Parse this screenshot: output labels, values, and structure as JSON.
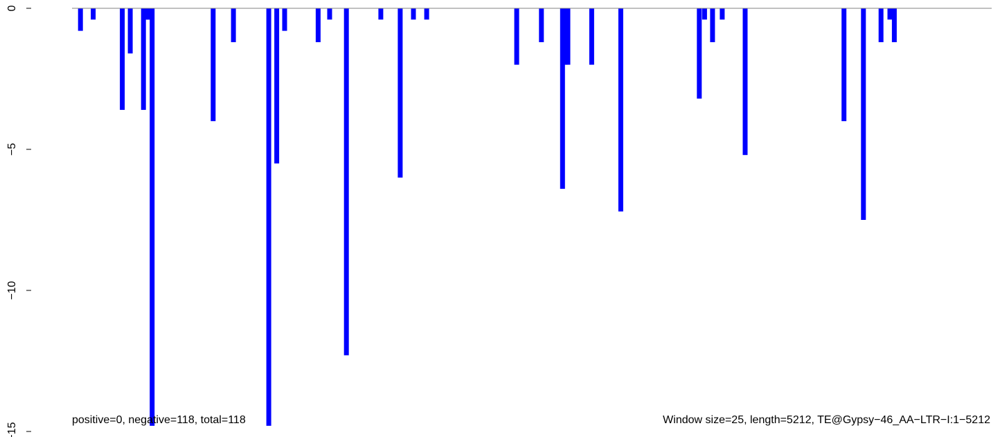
{
  "chart_data": {
    "type": "bar",
    "title": "",
    "xlabel": "",
    "ylabel": "",
    "bar_color": "#0000ff",
    "baseline_color": "#808080",
    "xlim": [
      0,
      5212
    ],
    "ylim": [
      -15,
      0
    ],
    "yticks": [
      {
        "value": 0,
        "label": "0"
      },
      {
        "value": -5,
        "label": "−5"
      },
      {
        "value": -10,
        "label": "−10"
      },
      {
        "value": -15,
        "label": "−15"
      }
    ],
    "grid": false,
    "bars": [
      {
        "x": 48,
        "value": -0.8
      },
      {
        "x": 120,
        "value": -0.4
      },
      {
        "x": 285,
        "value": -3.6
      },
      {
        "x": 330,
        "value": -1.6
      },
      {
        "x": 405,
        "value": -3.6
      },
      {
        "x": 418,
        "value": -0.4
      },
      {
        "x": 430,
        "value": -0.4
      },
      {
        "x": 442,
        "value": -0.4
      },
      {
        "x": 454,
        "value": -14.8
      },
      {
        "x": 800,
        "value": -4.0
      },
      {
        "x": 915,
        "value": -1.2
      },
      {
        "x": 1115,
        "value": -14.8
      },
      {
        "x": 1160,
        "value": -5.5
      },
      {
        "x": 1205,
        "value": -0.8
      },
      {
        "x": 1395,
        "value": -1.2
      },
      {
        "x": 1460,
        "value": -0.4
      },
      {
        "x": 1555,
        "value": -12.3
      },
      {
        "x": 1750,
        "value": -0.4
      },
      {
        "x": 1860,
        "value": -6.0
      },
      {
        "x": 1935,
        "value": -0.4
      },
      {
        "x": 2010,
        "value": -0.4
      },
      {
        "x": 2520,
        "value": -2.0
      },
      {
        "x": 2660,
        "value": -1.2
      },
      {
        "x": 2780,
        "value": -6.4
      },
      {
        "x": 2795,
        "value": -2.0
      },
      {
        "x": 2810,
        "value": -2.0
      },
      {
        "x": 2945,
        "value": -2.0
      },
      {
        "x": 3110,
        "value": -7.2
      },
      {
        "x": 3555,
        "value": -3.2
      },
      {
        "x": 3585,
        "value": -0.4
      },
      {
        "x": 3630,
        "value": -1.2
      },
      {
        "x": 3685,
        "value": -0.4
      },
      {
        "x": 3815,
        "value": -5.2
      },
      {
        "x": 4375,
        "value": -4.0
      },
      {
        "x": 4485,
        "value": -7.5
      },
      {
        "x": 4585,
        "value": -1.2
      },
      {
        "x": 4635,
        "value": -0.4
      },
      {
        "x": 4660,
        "value": -1.2
      }
    ],
    "annotations": {
      "left": "positive=0, negative=118, total=118",
      "right": "Window size=25, length=5212, TE@Gypsy−46_AA−LTR−I:1−5212"
    }
  }
}
